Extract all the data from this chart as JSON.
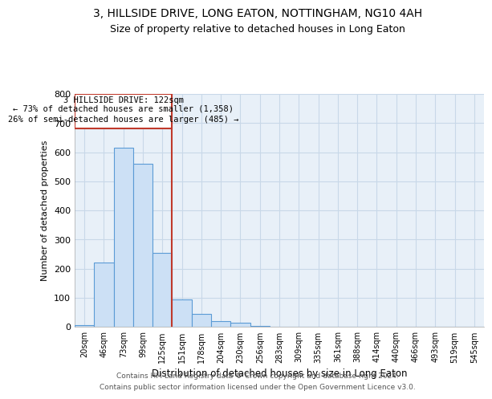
{
  "title": "3, HILLSIDE DRIVE, LONG EATON, NOTTINGHAM, NG10 4AH",
  "subtitle": "Size of property relative to detached houses in Long Eaton",
  "xlabel": "Distribution of detached houses by size in Long Eaton",
  "ylabel": "Number of detached properties",
  "footer_line1": "Contains HM Land Registry data © Crown copyright and database right 2024.",
  "footer_line2": "Contains public sector information licensed under the Open Government Licence v3.0.",
  "annotation_line1": "3 HILLSIDE DRIVE: 122sqm",
  "annotation_line2": "← 73% of detached houses are smaller (1,358)",
  "annotation_line3": "26% of semi-detached houses are larger (485) →",
  "property_line_x": 4.5,
  "bar_color": "#cce0f5",
  "bar_edge_color": "#5b9bd5",
  "line_color": "#c0392b",
  "categories": [
    "20sqm",
    "46sqm",
    "73sqm",
    "99sqm",
    "125sqm",
    "151sqm",
    "178sqm",
    "204sqm",
    "230sqm",
    "256sqm",
    "283sqm",
    "309sqm",
    "335sqm",
    "361sqm",
    "388sqm",
    "414sqm",
    "440sqm",
    "466sqm",
    "493sqm",
    "519sqm",
    "545sqm"
  ],
  "values": [
    5,
    220,
    615,
    560,
    255,
    95,
    45,
    20,
    15,
    3,
    0,
    0,
    0,
    0,
    0,
    0,
    0,
    0,
    0,
    0,
    0
  ],
  "ylim": [
    0,
    800
  ],
  "yticks": [
    0,
    100,
    200,
    300,
    400,
    500,
    600,
    700,
    800
  ],
  "bg_color": "#ffffff",
  "grid_color": "#c8d8e8",
  "title_fontsize": 10,
  "subtitle_fontsize": 9
}
